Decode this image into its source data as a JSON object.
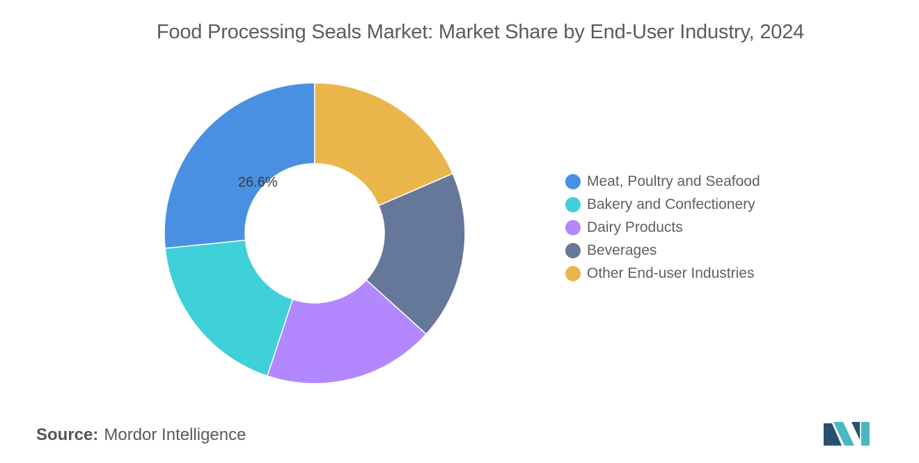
{
  "chart_data": {
    "type": "pie",
    "title": "Food Processing Seals Market: Market Share by End-User Industry, 2024",
    "categories": [
      "Meat, Poultry and Seafood",
      "Bakery and Confectionery",
      "Dairy Products",
      "Beverages",
      "Other End-user Industries"
    ],
    "values": [
      26.6,
      18.3,
      18.4,
      18.2,
      18.5
    ],
    "colors": [
      "#4a90e2",
      "#40d0d9",
      "#b388ff",
      "#66789a",
      "#eab54a"
    ],
    "data_labels": [
      "26.6%",
      "",
      "",
      "",
      ""
    ],
    "donut": true,
    "legend_position": "right"
  },
  "source": {
    "label": "Source:",
    "text": "Mordor Intelligence"
  },
  "logo": {
    "name": "mordor-intelligence-logo",
    "colors": [
      "#2a4f6e",
      "#47b8c4"
    ]
  }
}
